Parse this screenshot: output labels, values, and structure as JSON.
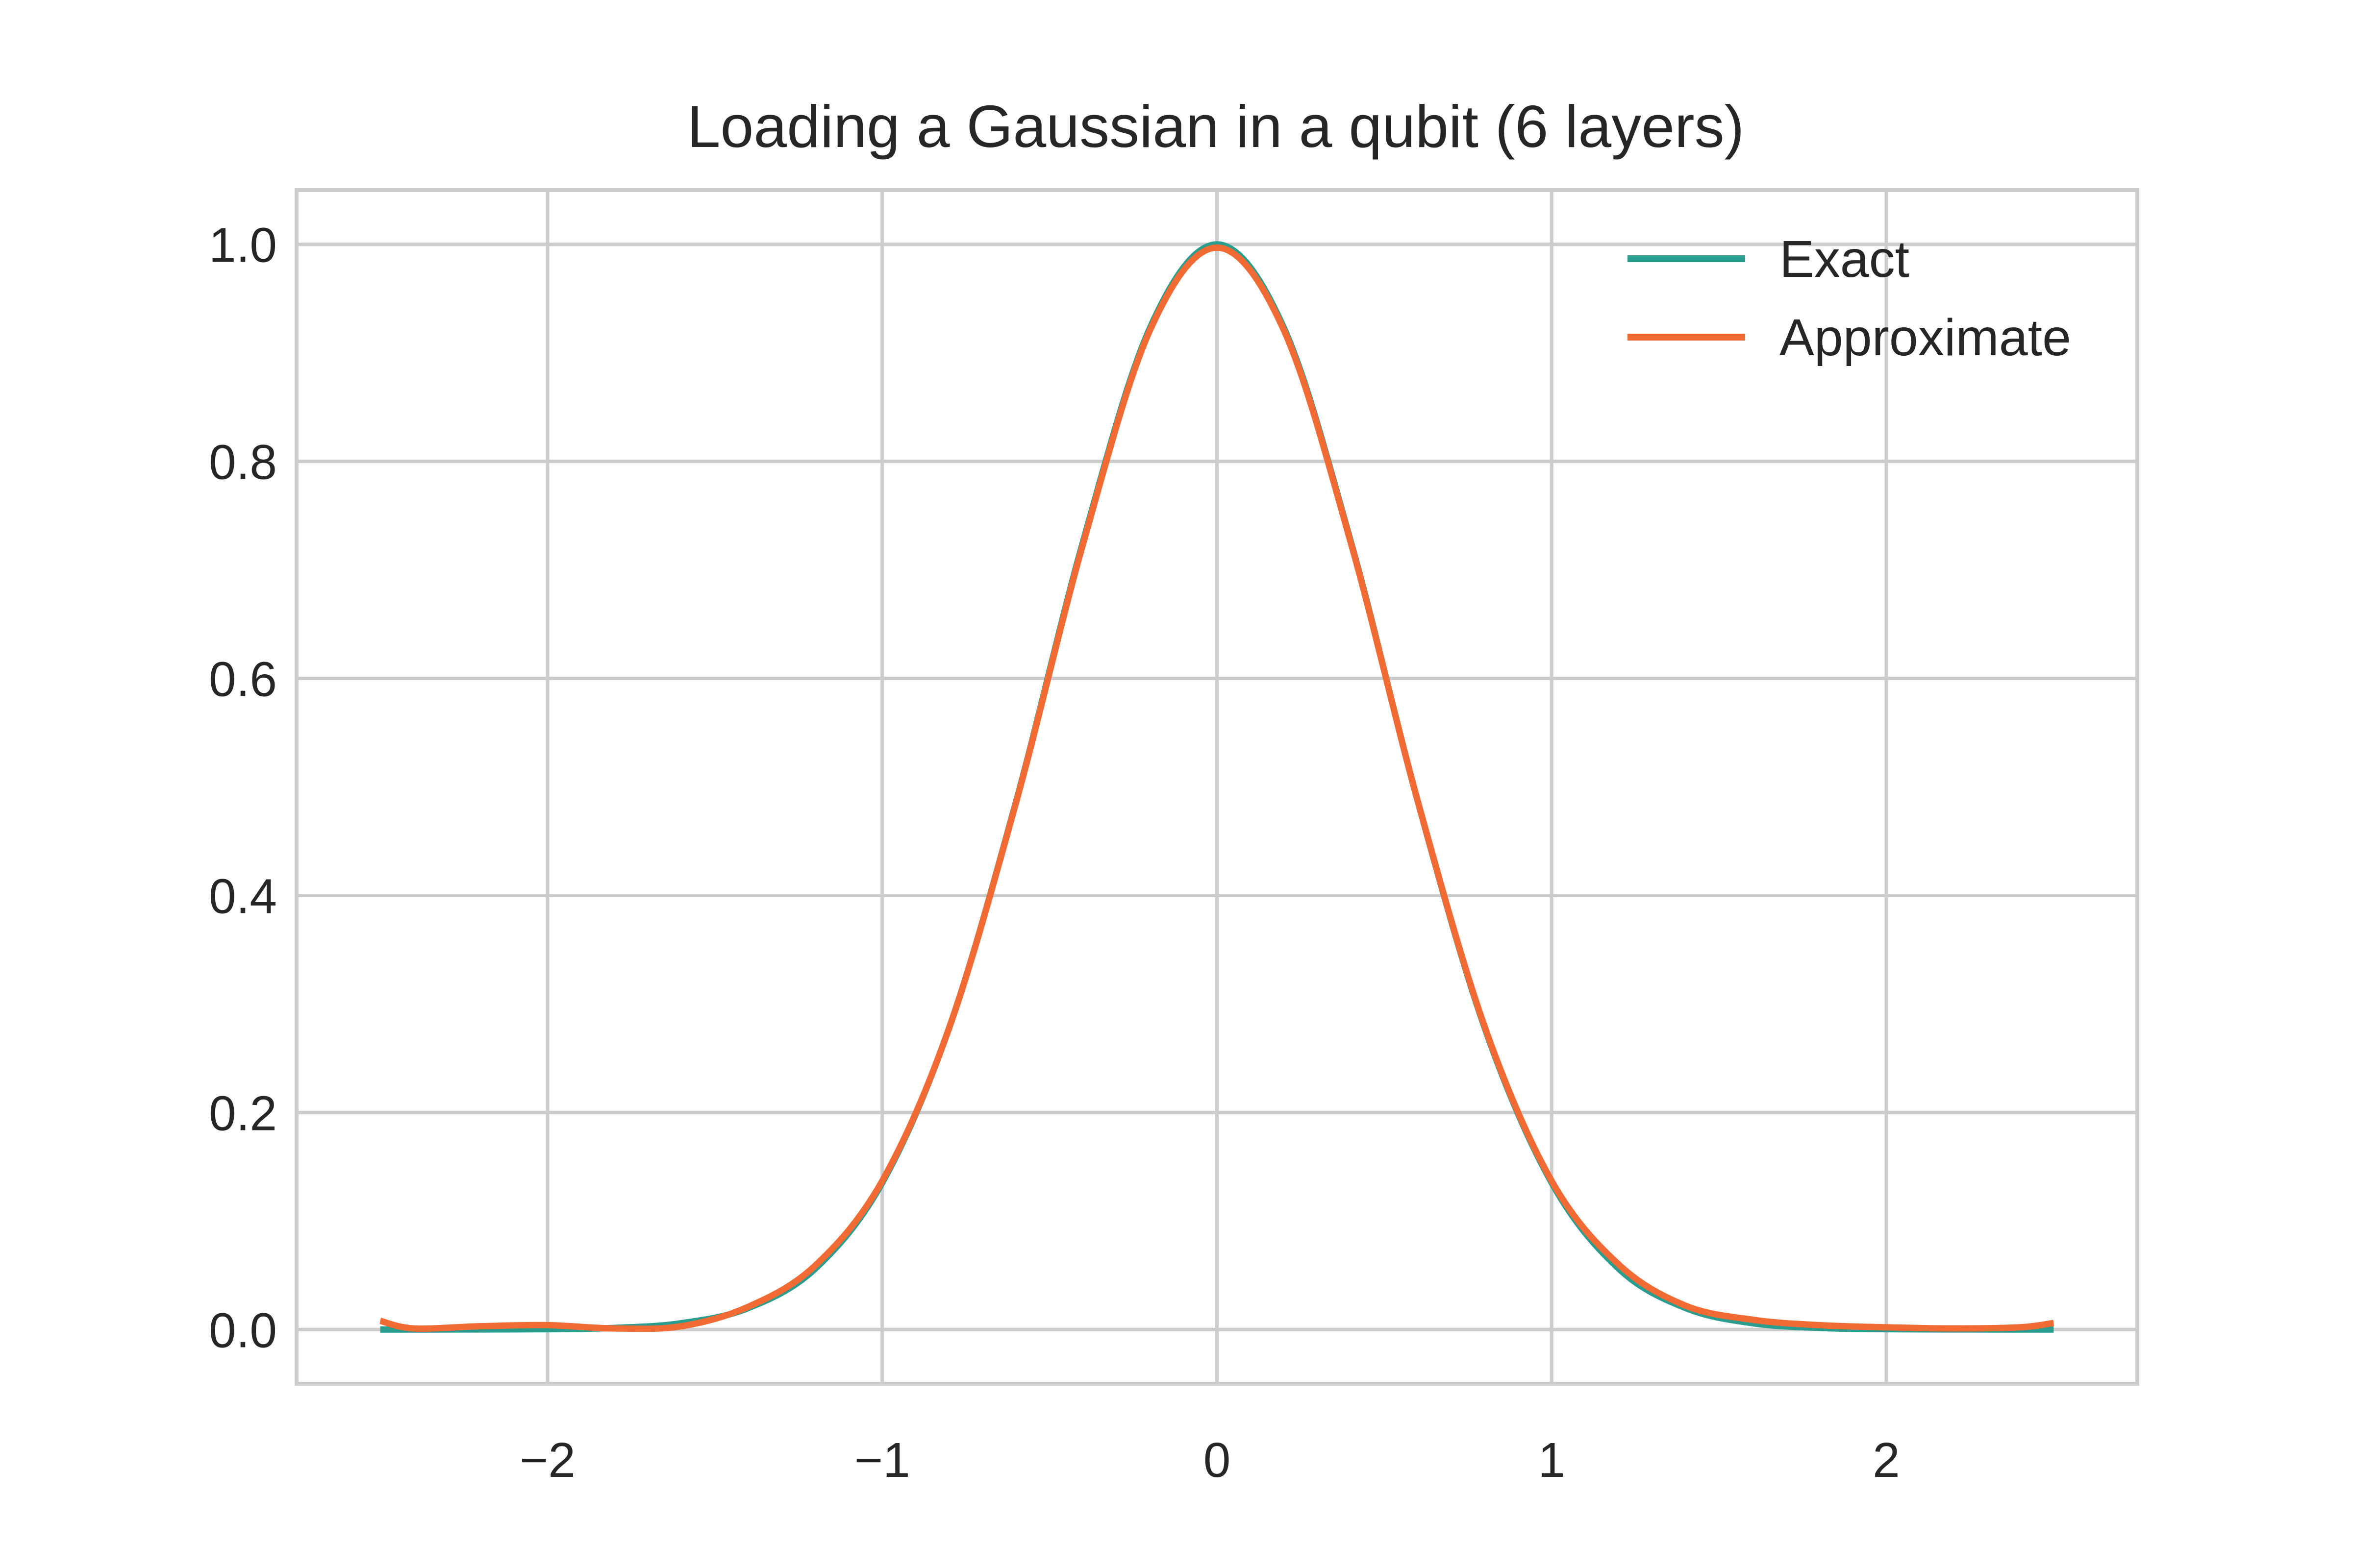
{
  "chart_data": {
    "type": "line",
    "title": "Loading a Gaussian in a qubit (6 layers)",
    "xlabel": "",
    "ylabel": "",
    "xlim": [
      -2.75,
      2.75
    ],
    "ylim": [
      -0.05,
      1.05
    ],
    "grid": true,
    "legend_position": "top-right",
    "x_ticks": [
      {
        "value": -2,
        "label": "−2"
      },
      {
        "value": -1,
        "label": "−1"
      },
      {
        "value": 0,
        "label": "0"
      },
      {
        "value": 1,
        "label": "1"
      },
      {
        "value": 2,
        "label": "2"
      }
    ],
    "y_ticks": [
      {
        "value": 0.0,
        "label": "0.0"
      },
      {
        "value": 0.2,
        "label": "0.2"
      },
      {
        "value": 0.4,
        "label": "0.4"
      },
      {
        "value": 0.6,
        "label": "0.6"
      },
      {
        "value": 0.8,
        "label": "0.8"
      },
      {
        "value": 1.0,
        "label": "1.0"
      }
    ],
    "x": [
      -2.5,
      -2.4,
      -2.2,
      -2.0,
      -1.8,
      -1.6,
      -1.4,
      -1.2,
      -1.0,
      -0.8,
      -0.6,
      -0.4,
      -0.2,
      0.0,
      0.2,
      0.4,
      0.6,
      0.8,
      1.0,
      1.2,
      1.4,
      1.6,
      1.8,
      2.0,
      2.2,
      2.4,
      2.5
    ],
    "series": [
      {
        "name": "Exact",
        "color": "#2a9d8f",
        "values": [
          0.0,
          0.0,
          0.0001,
          0.0003,
          0.0015,
          0.0058,
          0.0198,
          0.0561,
          0.1353,
          0.278,
          0.4868,
          0.7261,
          0.9231,
          1.0,
          0.9231,
          0.7261,
          0.4868,
          0.278,
          0.1353,
          0.0561,
          0.0198,
          0.0058,
          0.0015,
          0.0003,
          0.0001,
          0.0,
          0.0
        ]
      },
      {
        "name": "Approximate",
        "color": "#f26a34",
        "values": [
          0.008,
          0.001,
          0.003,
          0.004,
          0.001,
          0.003,
          0.021,
          0.059,
          0.137,
          0.278,
          0.486,
          0.724,
          0.921,
          0.997,
          0.921,
          0.725,
          0.487,
          0.279,
          0.137,
          0.06,
          0.022,
          0.009,
          0.004,
          0.002,
          0.001,
          0.002,
          0.006
        ]
      }
    ]
  }
}
